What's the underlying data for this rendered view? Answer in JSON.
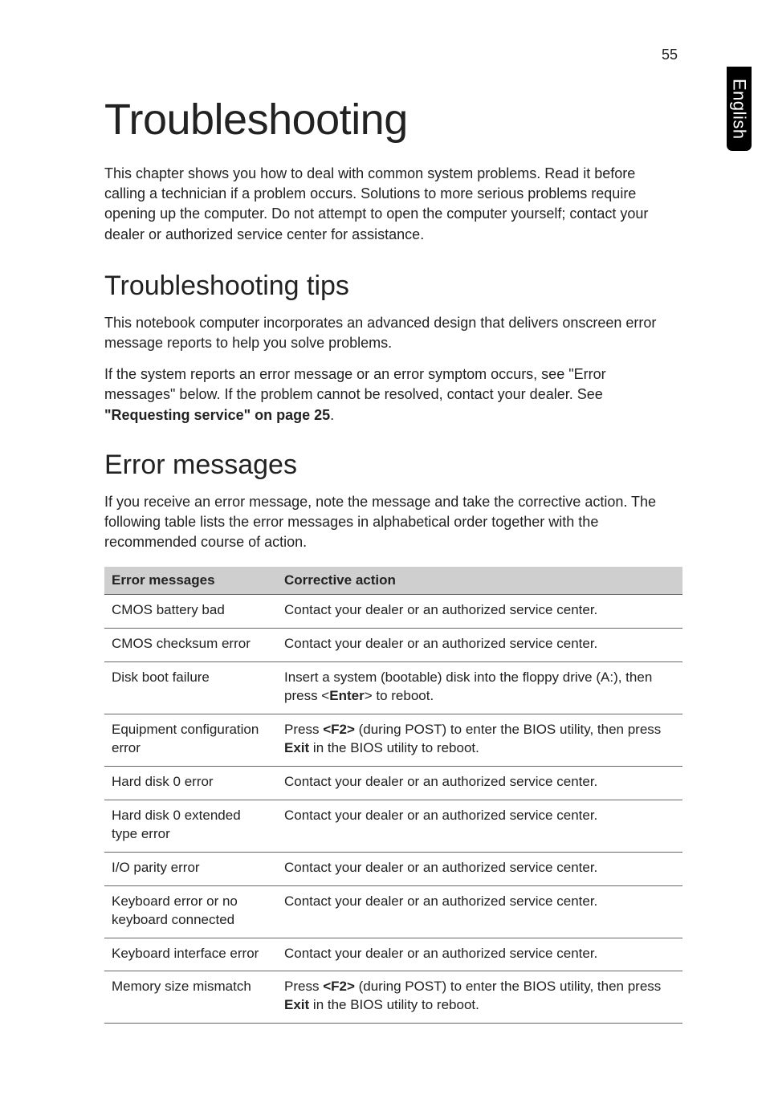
{
  "page_number": "55",
  "side_tab": "English",
  "title": "Troubleshooting",
  "intro": "This chapter shows you how to deal with common system problems. Read it before calling a technician if a problem occurs. Solutions to more serious problems require opening up the computer. Do not attempt to open the computer yourself; contact your dealer or authorized service center for assistance.",
  "tips_heading": "Troubleshooting tips",
  "tips_p1": "This notebook computer incorporates an advanced design that delivers onscreen error message reports to help you solve problems.",
  "tips_p2a": "If the system reports an error message or an error symptom occurs, see \"Error messages\" below. If the problem cannot be resolved, contact your dealer. See ",
  "tips_p2b": "\"Requesting service\" on page 25",
  "tips_p2c": ".",
  "err_heading": "Error messages",
  "err_intro": "If you receive an error message, note the message and take the corrective action. The following table lists the error messages in alphabetical order together with the recommended course of action.",
  "table": {
    "col1": "Error messages",
    "col2": "Corrective action",
    "rows": [
      {
        "msg": "CMOS battery bad",
        "act": "Contact your dealer or an authorized service center."
      },
      {
        "msg": "CMOS checksum error",
        "act": "Contact your dealer or an authorized service center."
      },
      {
        "msg": "Disk boot failure",
        "act_html": "Insert a system (bootable) disk into the floppy drive (A:), then press &lt;<b>Enter</b>&gt; to reboot."
      },
      {
        "msg": "Equipment configuration error",
        "act_html": "Press <b>&lt;F2&gt;</b> (during POST) to enter the BIOS utility, then press <b>Exit</b> in the BIOS utility to reboot."
      },
      {
        "msg": "Hard disk 0 error",
        "act": "Contact your dealer or an authorized service center."
      },
      {
        "msg": "Hard disk 0 extended type error",
        "act": "Contact your dealer or an authorized service center."
      },
      {
        "msg": "I/O parity error",
        "act": "Contact your dealer or an authorized service center."
      },
      {
        "msg": "Keyboard error or no keyboard connected",
        "act": "Contact your dealer or an authorized service center."
      },
      {
        "msg": "Keyboard interface error",
        "act": "Contact your dealer or an authorized service center."
      },
      {
        "msg": "Memory size mismatch",
        "act_html": "Press <b>&lt;F2&gt;</b> (during POST) to enter the BIOS utility, then press <b>Exit</b> in the BIOS utility to reboot."
      }
    ]
  }
}
